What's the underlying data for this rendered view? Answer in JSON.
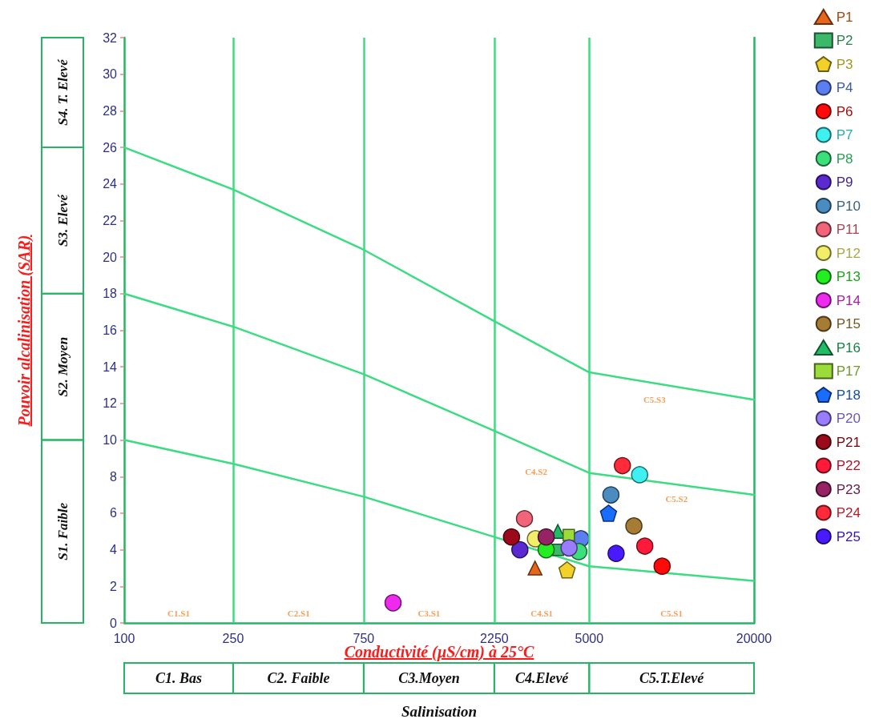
{
  "chart_data": {
    "type": "scatter",
    "xlabel": "Conductivité (µS/cm) à 25°C",
    "ylabel": "Pouvoir alcalinisation (SAR)",
    "annotations": [
      "C5.S3",
      "C4.S2",
      "C5.S2",
      "C1.S1",
      "C2.S1",
      "C3.S1",
      "C4.S1",
      "C5.S1",
      "S4. T. Elevé",
      "S3. Elevé",
      "S2. Moyen",
      "S1. Faible",
      "C1. Bas",
      "C2. Faible",
      "C3.Moyen",
      "C4.Elevé",
      "C5.T.Elevé",
      "Salinisation"
    ],
    "log": "x",
    "xlim": [
      100,
      20000
    ],
    "xticks": [
      100,
      250,
      750,
      2250,
      5000,
      20000
    ],
    "ylim": [
      0,
      32
    ],
    "yticks": [
      0,
      2,
      4,
      6,
      8,
      10,
      12,
      14,
      16,
      18,
      20,
      22,
      24,
      26,
      28,
      30,
      32
    ],
    "legend": "top right",
    "ref_lines": [
      {
        "axis": "x",
        "value": 250,
        "color": "#3cdc82"
      },
      {
        "axis": "x",
        "value": 750,
        "color": "#3cdc82"
      },
      {
        "axis": "x",
        "value": 2250,
        "color": "#3cdc82"
      },
      {
        "axis": "x",
        "value": 5000,
        "color": "#3cdc82"
      }
    ],
    "series": [
      {
        "type": "line",
        "marker": "none",
        "color": "#3cdc82",
        "x": [
          100,
          250,
          750,
          2250,
          5000,
          20000
        ],
        "values": [
          26,
          23.7,
          20.4,
          16.5,
          13.7,
          12.2
        ]
      },
      {
        "type": "line",
        "marker": "none",
        "color": "#3cdc82",
        "x": [
          100,
          250,
          750,
          2250,
          5000,
          20000
        ],
        "values": [
          18,
          16.2,
          13.6,
          10.5,
          8.2,
          7.0
        ]
      },
      {
        "type": "line",
        "marker": "none",
        "color": "#3cdc82",
        "x": [
          100,
          250,
          750,
          2250,
          5000,
          20000
        ],
        "values": [
          10,
          8.7,
          6.9,
          4.7,
          3.1,
          2.3
        ]
      },
      {
        "name": "P1",
        "marker": "triangle",
        "color": "#e8661a",
        "x": [
          3170
        ],
        "values": [
          3.0
        ]
      },
      {
        "name": "P2",
        "marker": "square",
        "color": "#3cb86a",
        "x": [
          3840
        ],
        "values": [
          4.0
        ]
      },
      {
        "name": "P3",
        "color": "#f2d22a",
        "x": [
          4150
        ],
        "values": [
          2.9
        ]
      },
      {
        "name": "P4",
        "marker": "circle",
        "color": "#5b7ef0",
        "x": [
          4660
        ],
        "values": [
          4.6
        ]
      },
      {
        "name": "P6",
        "marker": "circle",
        "color": "#ff0a0a",
        "x": [
          9230
        ],
        "values": [
          3.1
        ]
      },
      {
        "name": "P7",
        "marker": "circle",
        "color": "#3ef0f0",
        "x": [
          7640
        ],
        "values": [
          8.1
        ]
      },
      {
        "name": "P8",
        "marker": "circle",
        "color": "#3ce07a",
        "x": [
          4580
        ],
        "values": [
          3.9
        ]
      },
      {
        "name": "P9",
        "marker": "circle",
        "color": "#5a2ad0",
        "x": [
          2790
        ],
        "values": [
          4.0
        ]
      },
      {
        "name": "P10",
        "marker": "circle",
        "color": "#4a8cc0",
        "x": [
          6000
        ],
        "values": [
          7.0
        ]
      },
      {
        "name": "P11",
        "marker": "circle",
        "color": "#f2647a",
        "x": [
          2900
        ],
        "values": [
          5.7
        ]
      },
      {
        "name": "P12",
        "marker": "circle",
        "color": "#f2ee6a",
        "x": [
          3180
        ],
        "values": [
          4.6
        ]
      },
      {
        "name": "P13",
        "marker": "circle",
        "color": "#22ee22",
        "x": [
          3480
        ],
        "values": [
          4.0
        ]
      },
      {
        "name": "P14",
        "marker": "circle",
        "color": "#ee2aee",
        "x": [
          960
        ],
        "values": [
          1.1
        ]
      },
      {
        "name": "P15",
        "marker": "circle",
        "color": "#a67c34",
        "x": [
          7280
        ],
        "values": [
          5.3
        ]
      },
      {
        "name": "P16",
        "marker": "triangle",
        "color": "#22bb66",
        "x": [
          3840
        ],
        "values": [
          5.0
        ]
      },
      {
        "name": "P17",
        "marker": "square",
        "color": "#9cdc3a",
        "x": [
          4210
        ],
        "values": [
          4.8
        ]
      },
      {
        "name": "P18",
        "color": "#1a6cff",
        "x": [
          5880
        ],
        "values": [
          6.0
        ]
      },
      {
        "name": "P20",
        "marker": "circle",
        "color": "#9a7cff",
        "x": [
          4220
        ],
        "values": [
          4.1
        ]
      },
      {
        "name": "P21",
        "marker": "circle",
        "color": "#9a0a1a",
        "x": [
          2600
        ],
        "values": [
          4.7
        ]
      },
      {
        "name": "P22",
        "marker": "circle",
        "color": "#ff1a3a",
        "x": [
          7980
        ],
        "values": [
          4.2
        ]
      },
      {
        "name": "P23",
        "marker": "circle",
        "color": "#962464",
        "x": [
          3480
        ],
        "values": [
          4.7
        ]
      },
      {
        "name": "P24",
        "marker": "circle",
        "color": "#ff2a3a",
        "x": [
          6610
        ],
        "values": [
          8.6
        ]
      },
      {
        "name": "P25",
        "marker": "circle",
        "color": "#4a1aff",
        "x": [
          6270
        ],
        "values": [
          3.8
        ]
      }
    ]
  }
}
